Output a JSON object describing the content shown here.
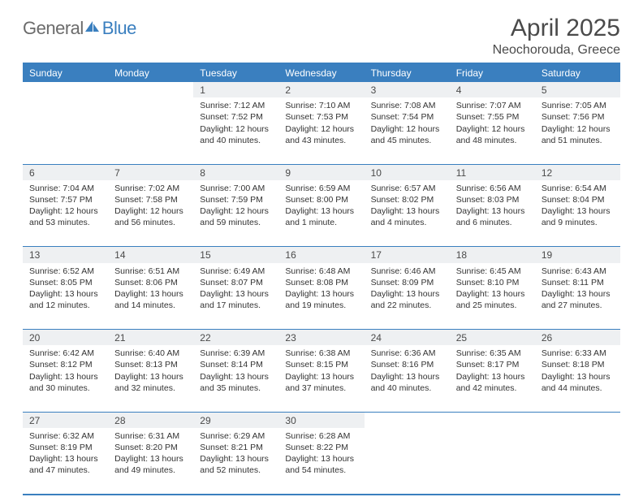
{
  "brand": {
    "text1": "General",
    "text2": "Blue"
  },
  "title": "April 2025",
  "location": "Neochorouda, Greece",
  "colors": {
    "accent": "#3a7fbf",
    "daynum_bg": "#eef0f2",
    "text": "#333333",
    "muted": "#4a4a4a",
    "page_bg": "#ffffff"
  },
  "day_headers": [
    "Sunday",
    "Monday",
    "Tuesday",
    "Wednesday",
    "Thursday",
    "Friday",
    "Saturday"
  ],
  "weeks": [
    [
      null,
      null,
      {
        "n": "1",
        "sr": "Sunrise: 7:12 AM",
        "ss": "Sunset: 7:52 PM",
        "dl": "Daylight: 12 hours and 40 minutes."
      },
      {
        "n": "2",
        "sr": "Sunrise: 7:10 AM",
        "ss": "Sunset: 7:53 PM",
        "dl": "Daylight: 12 hours and 43 minutes."
      },
      {
        "n": "3",
        "sr": "Sunrise: 7:08 AM",
        "ss": "Sunset: 7:54 PM",
        "dl": "Daylight: 12 hours and 45 minutes."
      },
      {
        "n": "4",
        "sr": "Sunrise: 7:07 AM",
        "ss": "Sunset: 7:55 PM",
        "dl": "Daylight: 12 hours and 48 minutes."
      },
      {
        "n": "5",
        "sr": "Sunrise: 7:05 AM",
        "ss": "Sunset: 7:56 PM",
        "dl": "Daylight: 12 hours and 51 minutes."
      }
    ],
    [
      {
        "n": "6",
        "sr": "Sunrise: 7:04 AM",
        "ss": "Sunset: 7:57 PM",
        "dl": "Daylight: 12 hours and 53 minutes."
      },
      {
        "n": "7",
        "sr": "Sunrise: 7:02 AM",
        "ss": "Sunset: 7:58 PM",
        "dl": "Daylight: 12 hours and 56 minutes."
      },
      {
        "n": "8",
        "sr": "Sunrise: 7:00 AM",
        "ss": "Sunset: 7:59 PM",
        "dl": "Daylight: 12 hours and 59 minutes."
      },
      {
        "n": "9",
        "sr": "Sunrise: 6:59 AM",
        "ss": "Sunset: 8:00 PM",
        "dl": "Daylight: 13 hours and 1 minute."
      },
      {
        "n": "10",
        "sr": "Sunrise: 6:57 AM",
        "ss": "Sunset: 8:02 PM",
        "dl": "Daylight: 13 hours and 4 minutes."
      },
      {
        "n": "11",
        "sr": "Sunrise: 6:56 AM",
        "ss": "Sunset: 8:03 PM",
        "dl": "Daylight: 13 hours and 6 minutes."
      },
      {
        "n": "12",
        "sr": "Sunrise: 6:54 AM",
        "ss": "Sunset: 8:04 PM",
        "dl": "Daylight: 13 hours and 9 minutes."
      }
    ],
    [
      {
        "n": "13",
        "sr": "Sunrise: 6:52 AM",
        "ss": "Sunset: 8:05 PM",
        "dl": "Daylight: 13 hours and 12 minutes."
      },
      {
        "n": "14",
        "sr": "Sunrise: 6:51 AM",
        "ss": "Sunset: 8:06 PM",
        "dl": "Daylight: 13 hours and 14 minutes."
      },
      {
        "n": "15",
        "sr": "Sunrise: 6:49 AM",
        "ss": "Sunset: 8:07 PM",
        "dl": "Daylight: 13 hours and 17 minutes."
      },
      {
        "n": "16",
        "sr": "Sunrise: 6:48 AM",
        "ss": "Sunset: 8:08 PM",
        "dl": "Daylight: 13 hours and 19 minutes."
      },
      {
        "n": "17",
        "sr": "Sunrise: 6:46 AM",
        "ss": "Sunset: 8:09 PM",
        "dl": "Daylight: 13 hours and 22 minutes."
      },
      {
        "n": "18",
        "sr": "Sunrise: 6:45 AM",
        "ss": "Sunset: 8:10 PM",
        "dl": "Daylight: 13 hours and 25 minutes."
      },
      {
        "n": "19",
        "sr": "Sunrise: 6:43 AM",
        "ss": "Sunset: 8:11 PM",
        "dl": "Daylight: 13 hours and 27 minutes."
      }
    ],
    [
      {
        "n": "20",
        "sr": "Sunrise: 6:42 AM",
        "ss": "Sunset: 8:12 PM",
        "dl": "Daylight: 13 hours and 30 minutes."
      },
      {
        "n": "21",
        "sr": "Sunrise: 6:40 AM",
        "ss": "Sunset: 8:13 PM",
        "dl": "Daylight: 13 hours and 32 minutes."
      },
      {
        "n": "22",
        "sr": "Sunrise: 6:39 AM",
        "ss": "Sunset: 8:14 PM",
        "dl": "Daylight: 13 hours and 35 minutes."
      },
      {
        "n": "23",
        "sr": "Sunrise: 6:38 AM",
        "ss": "Sunset: 8:15 PM",
        "dl": "Daylight: 13 hours and 37 minutes."
      },
      {
        "n": "24",
        "sr": "Sunrise: 6:36 AM",
        "ss": "Sunset: 8:16 PM",
        "dl": "Daylight: 13 hours and 40 minutes."
      },
      {
        "n": "25",
        "sr": "Sunrise: 6:35 AM",
        "ss": "Sunset: 8:17 PM",
        "dl": "Daylight: 13 hours and 42 minutes."
      },
      {
        "n": "26",
        "sr": "Sunrise: 6:33 AM",
        "ss": "Sunset: 8:18 PM",
        "dl": "Daylight: 13 hours and 44 minutes."
      }
    ],
    [
      {
        "n": "27",
        "sr": "Sunrise: 6:32 AM",
        "ss": "Sunset: 8:19 PM",
        "dl": "Daylight: 13 hours and 47 minutes."
      },
      {
        "n": "28",
        "sr": "Sunrise: 6:31 AM",
        "ss": "Sunset: 8:20 PM",
        "dl": "Daylight: 13 hours and 49 minutes."
      },
      {
        "n": "29",
        "sr": "Sunrise: 6:29 AM",
        "ss": "Sunset: 8:21 PM",
        "dl": "Daylight: 13 hours and 52 minutes."
      },
      {
        "n": "30",
        "sr": "Sunrise: 6:28 AM",
        "ss": "Sunset: 8:22 PM",
        "dl": "Daylight: 13 hours and 54 minutes."
      },
      null,
      null,
      null
    ]
  ]
}
